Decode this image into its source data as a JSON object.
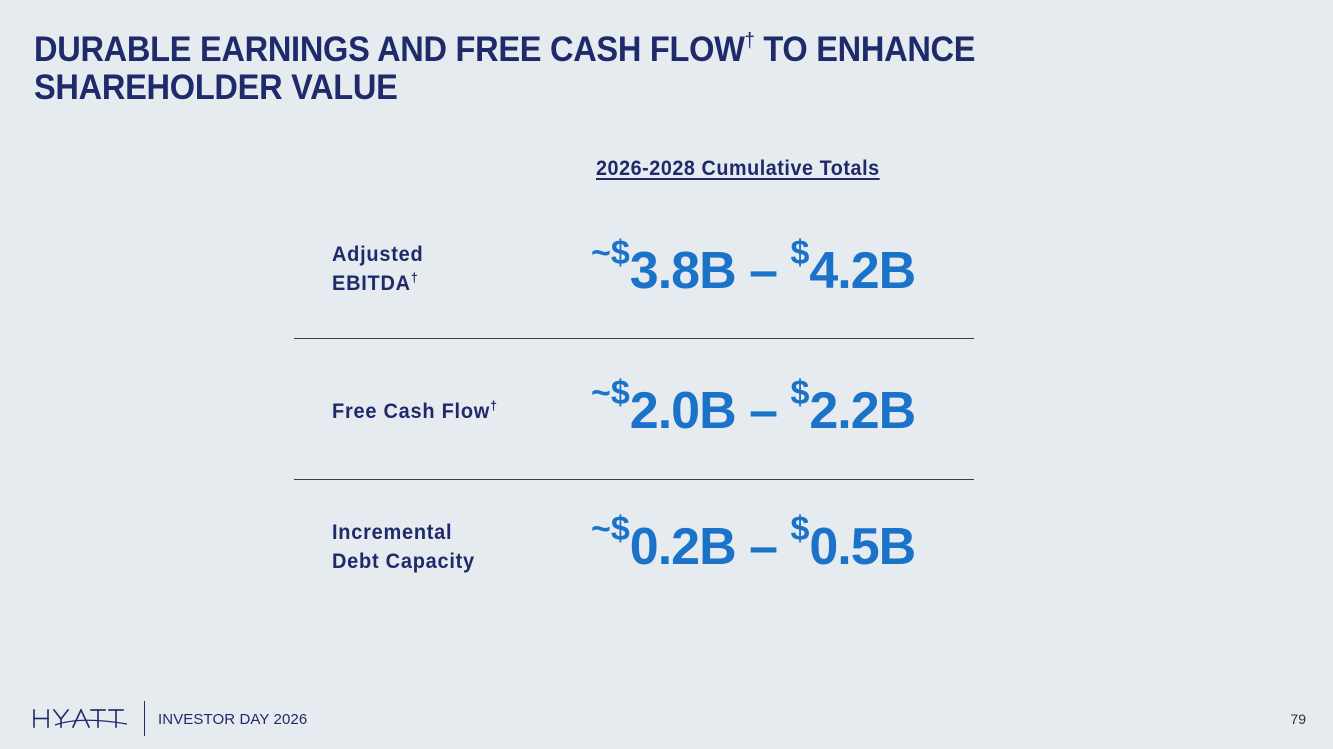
{
  "slide": {
    "title": "DURABLE EARNINGS AND FREE CASH FLOW",
    "title_dagger": "†",
    "title_suffix": " TO ENHANCE SHAREHOLDER VALUE"
  },
  "table": {
    "column_header": "2026-2028 Cumulative Totals",
    "rows": [
      {
        "label_line1": "Adjusted",
        "label_line2": "EBITDA",
        "label_dagger": "†",
        "tilde": "~",
        "currency": "$",
        "low": "3.8B",
        "dash": " – ",
        "high": "4.2B"
      },
      {
        "label_line1": "Free Cash Flow",
        "label_dagger": "†",
        "tilde": "~",
        "currency": "$",
        "low": "2.0B",
        "dash": " – ",
        "high": "2.2B"
      },
      {
        "label_line1": "Incremental",
        "label_line2": "Debt Capacity",
        "tilde": "~",
        "currency": "$",
        "low": "0.2B",
        "dash": " – ",
        "high": "0.5B"
      }
    ]
  },
  "footer": {
    "logo_text": "HYATT",
    "event": "INVESTOR DAY 2026",
    "page_number": "79"
  },
  "colors": {
    "background": "#e6ebf0",
    "navy": "#1f2a6b",
    "accent_blue": "#1a73c9"
  }
}
